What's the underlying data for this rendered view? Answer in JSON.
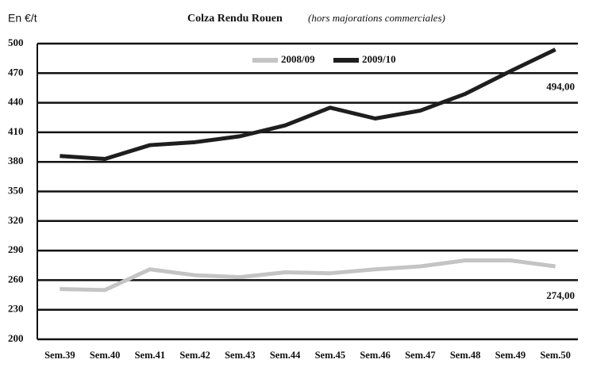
{
  "chart_data": {
    "type": "line",
    "title": "Colza Rendu Rouen",
    "subtitle": "(hors majorations commerciales)",
    "y_label": "En €/t",
    "categories": [
      "Sem.39",
      "Sem.40",
      "Sem.41",
      "Sem.42",
      "Sem.43",
      "Sem.44",
      "Sem.45",
      "Sem.46",
      "Sem.47",
      "Sem.48",
      "Sem.49",
      "Sem.50"
    ],
    "series": [
      {
        "name": "2008/09",
        "color": "#c4c4c4",
        "values": [
          251,
          250,
          271,
          265,
          263,
          268,
          267,
          271,
          274,
          280,
          280,
          274
        ],
        "value_labels": [
          null,
          null,
          null,
          null,
          null,
          null,
          null,
          null,
          null,
          null,
          null,
          "274,00"
        ],
        "label_color": "#bbbbbb"
      },
      {
        "name": "2009/10",
        "color": "#1e1e1e",
        "values": [
          386,
          383,
          397,
          400,
          406,
          417,
          435,
          424,
          432,
          449,
          472,
          494
        ],
        "value_labels": [
          null,
          null,
          null,
          null,
          null,
          null,
          null,
          null,
          null,
          null,
          null,
          "494,00"
        ],
        "label_color": "#111111"
      }
    ],
    "ylim": [
      200,
      500
    ],
    "yticks": [
      200,
      230,
      260,
      290,
      320,
      350,
      380,
      410,
      440,
      470,
      500
    ],
    "grid": true
  }
}
